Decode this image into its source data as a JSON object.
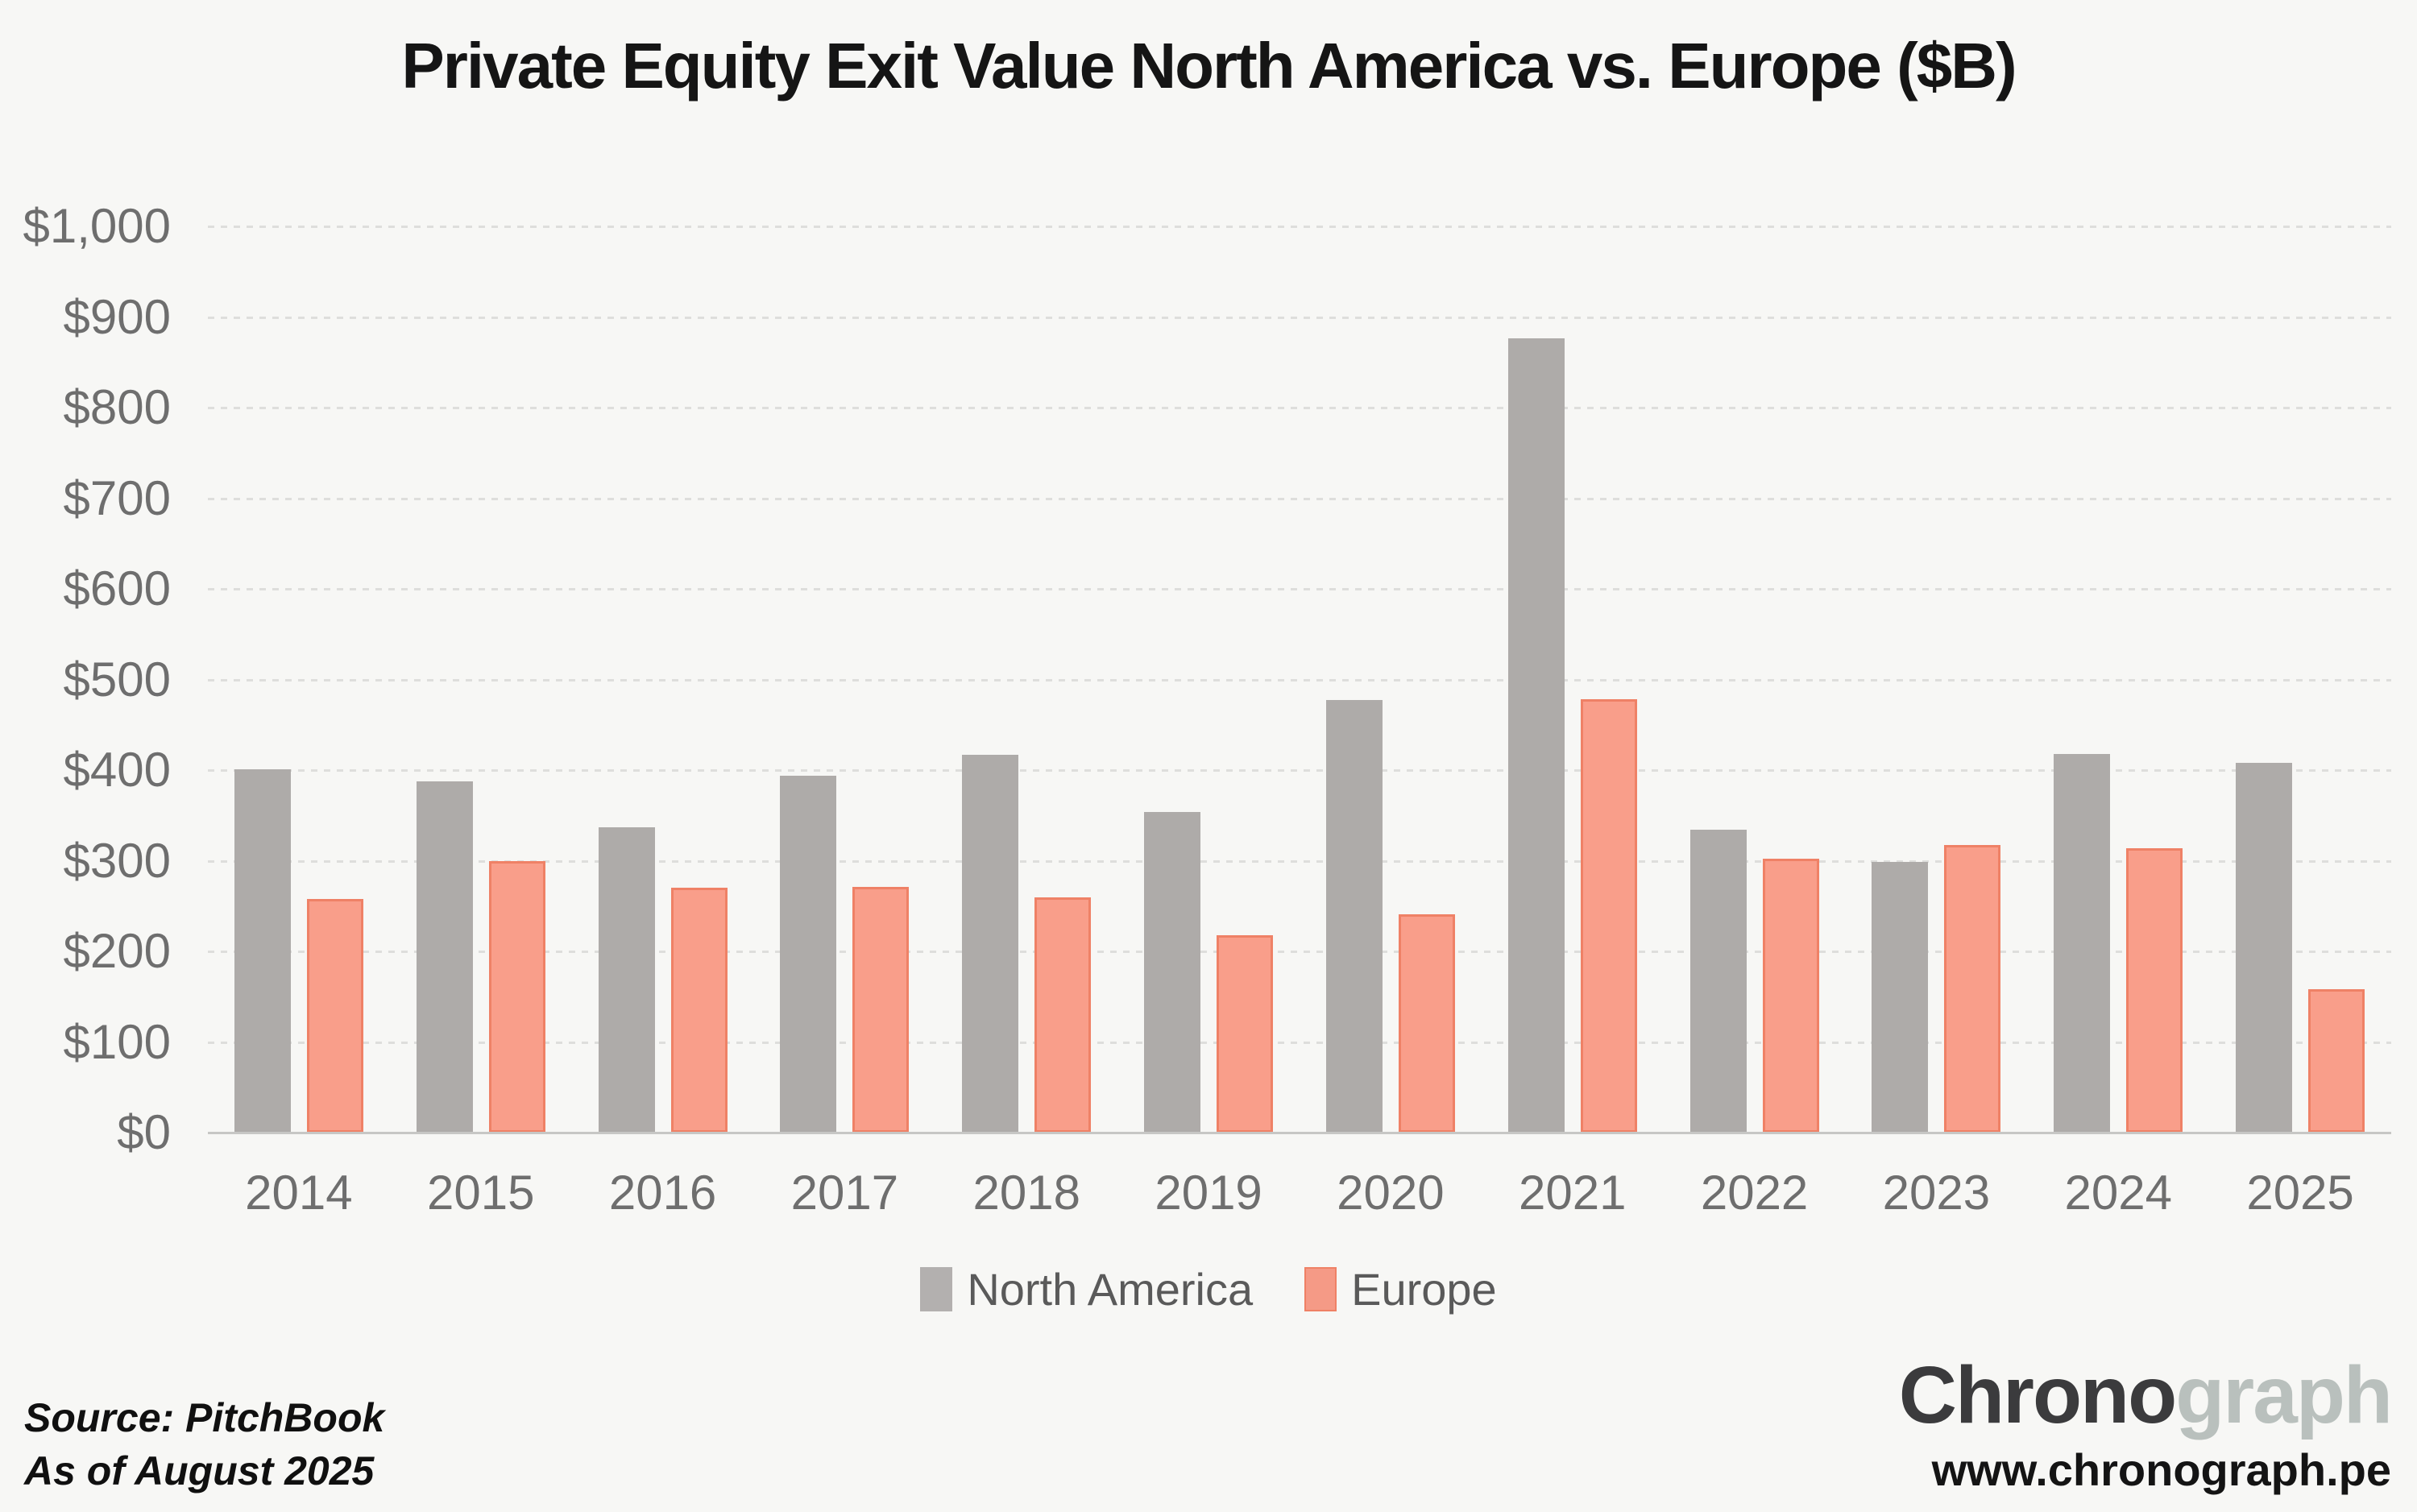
{
  "title": "Private Equity Exit Value North America vs. Europe ($B)",
  "y_axis": {
    "tick_labels": [
      "$0",
      "$100",
      "$200",
      "$300",
      "$400",
      "$500",
      "$600",
      "$700",
      "$800",
      "$900",
      "$1,000"
    ]
  },
  "legend": {
    "items": [
      "North America",
      "Europe"
    ]
  },
  "source": {
    "line1": "Source: PitchBook",
    "line2": "As of August 2025"
  },
  "branding": {
    "logo_dark": "Chrono",
    "logo_light": "graph",
    "website": "www.chronograph.pe"
  },
  "colors": {
    "background": "#F7F7F5",
    "north_america_bar": "#AEABA9",
    "europe_bar_fill": "#F99E8A",
    "europe_bar_border": "#EF8166",
    "gridline": "#DEDEDC",
    "axis_line": "#C7C7C5",
    "axis_text": "#6E6E6E",
    "legend_text": "#5A5A5A",
    "title_text": "#151515",
    "logo_dark": "#3B3B3D",
    "logo_light": "#B9C0BD"
  },
  "chart_data": {
    "type": "bar",
    "title": "Private Equity Exit Value North America vs. Europe ($B)",
    "categories": [
      "2014",
      "2015",
      "2016",
      "2017",
      "2018",
      "2019",
      "2020",
      "2021",
      "2022",
      "2023",
      "2024",
      "2025"
    ],
    "series": [
      {
        "name": "North America",
        "color": "#AEABA9",
        "values": [
          401,
          388,
          337,
          394,
          417,
          354,
          477,
          877,
          334,
          299,
          418,
          408
        ]
      },
      {
        "name": "Europe",
        "color": "#F99E8A",
        "values": [
          258,
          300,
          270,
          271,
          260,
          218,
          241,
          478,
          302,
          317,
          314,
          158
        ]
      }
    ],
    "xlabel": "",
    "ylabel": "",
    "ylim": [
      0,
      1000
    ],
    "ytick_step": 100,
    "grid": "horizontal-dotted",
    "legend_position": "bottom"
  }
}
